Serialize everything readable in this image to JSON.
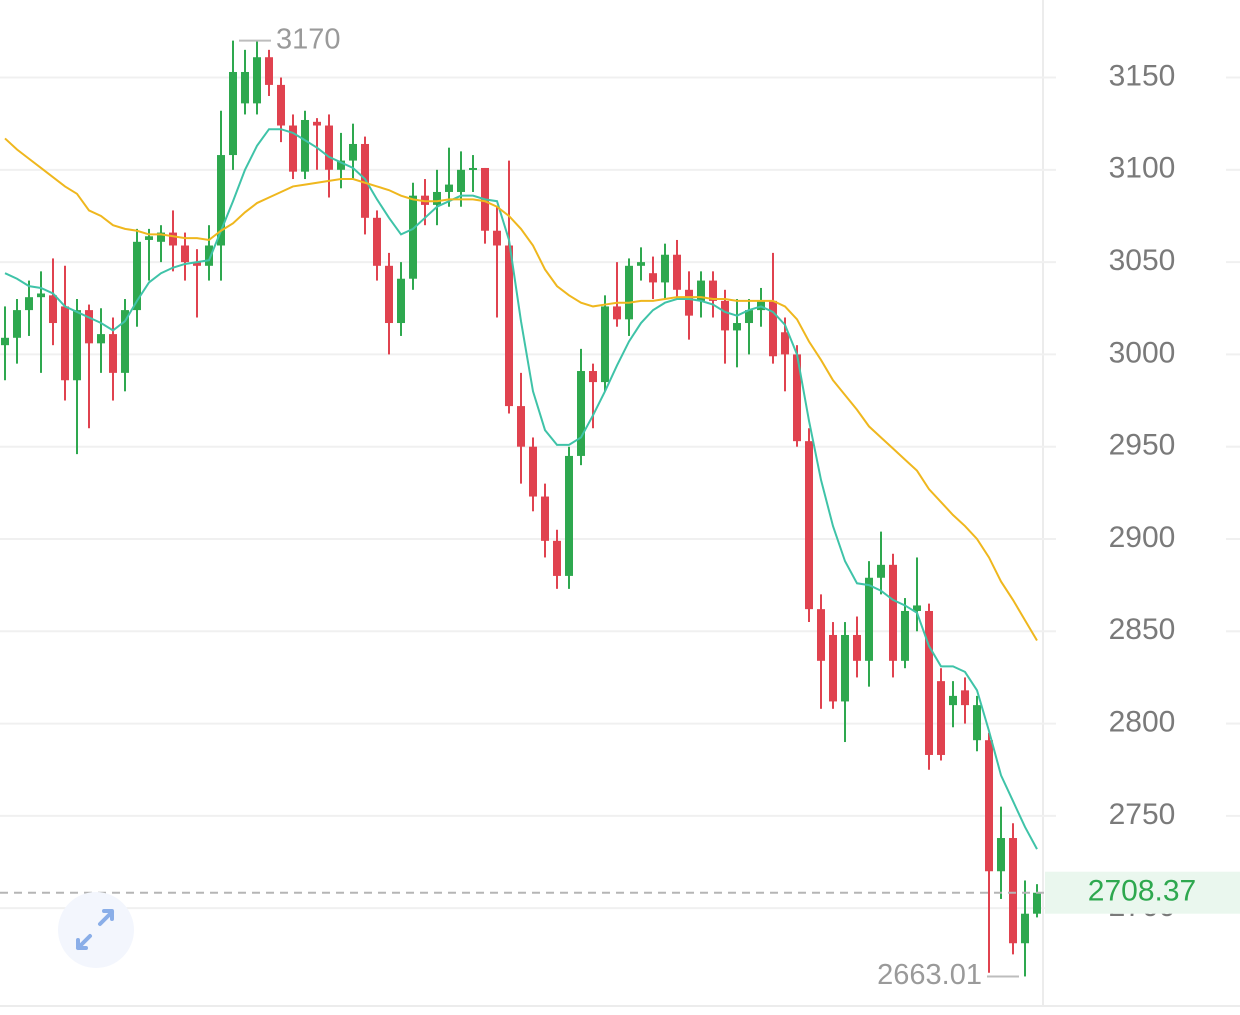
{
  "chart_data": {
    "type": "candlestick",
    "up_color": "#2ea84f",
    "down_color": "#e0424f",
    "ylim": [
      2647,
      3192
    ],
    "yticks": [
      2700,
      2750,
      2800,
      2850,
      2900,
      2950,
      3000,
      3050,
      3100,
      3150
    ],
    "grid": true,
    "open": [
      3005,
      3009,
      3024,
      3031,
      3032,
      3026,
      2986,
      3024,
      3006,
      3011,
      2990,
      3024,
      3062,
      3061,
      3066,
      3059,
      3050,
      3048,
      3059,
      3108,
      3136,
      3136,
      3161,
      3146,
      3124,
      3099,
      3126,
      3124,
      3100,
      3105,
      3114,
      3074,
      3048,
      3017,
      3041,
      3086,
      3081,
      3088,
      3088,
      3100,
      3101,
      3067,
      3059,
      2972,
      2950,
      2923,
      2899,
      2880,
      2945,
      2991,
      2985,
      3026,
      3019,
      3048,
      3044,
      3039,
      3054,
      3035,
      3029,
      3040,
      3029,
      3013,
      3017,
      3024,
      3029,
      3012,
      3000,
      2953,
      2862,
      2848,
      2812,
      2848,
      2834,
      2879,
      2886,
      2834,
      2861,
      2861,
      2823,
      2810,
      2818,
      2791,
      2791,
      2720,
      2738,
      2681,
      2697
    ],
    "high": [
      3026,
      3030,
      3040,
      3045,
      3052,
      3048,
      3030,
      3027,
      3025,
      3020,
      3030,
      3068,
      3068,
      3070,
      3078,
      3066,
      3057,
      3070,
      3132,
      3170,
      3165,
      3169.95,
      3165,
      3150,
      3130,
      3132,
      3128,
      3130,
      3120,
      3125,
      3118,
      3078,
      3055,
      3050,
      3093,
      3095,
      3100,
      3112,
      3110,
      3108,
      3101,
      3080,
      3105,
      2990,
      2955,
      2930,
      2905,
      2950,
      3003,
      2995,
      3032,
      3050,
      3052,
      3058,
      3053,
      3060,
      3062,
      3045,
      3045,
      3045,
      3035,
      3030,
      3030,
      3036,
      3055,
      3020,
      3005,
      2960,
      2870,
      2855,
      2855,
      2858,
      2888,
      2904,
      2892,
      2868,
      2890,
      2865,
      2830,
      2823,
      2825,
      2815,
      2795,
      2755,
      2746,
      2715,
      2713
    ],
    "low": [
      2986,
      2995,
      3010,
      2990,
      3005,
      2975,
      2946,
      2960,
      2990,
      2975,
      2980,
      3015,
      3040,
      3050,
      3045,
      3040,
      3020,
      3040,
      3040,
      3100,
      3130,
      3130,
      3140,
      3115,
      3095,
      3095,
      3100,
      3085,
      3090,
      3095,
      3065,
      3040,
      3000,
      3010,
      3035,
      3070,
      3070,
      3080,
      3080,
      3088,
      3060,
      3020,
      2968,
      2930,
      2915,
      2890,
      2873,
      2873,
      2940,
      2960,
      2980,
      3015,
      3010,
      3040,
      3030,
      3030,
      3030,
      3008,
      3020,
      3020,
      2995,
      2993,
      3000,
      3015,
      2995,
      2980,
      2950,
      2855,
      2808,
      2808,
      2790,
      2825,
      2820,
      2870,
      2825,
      2830,
      2850,
      2775,
      2780,
      2798,
      2800,
      2785,
      2665,
      2705,
      2675,
      2663.01,
      2695
    ],
    "close": [
      3009,
      3024,
      3031,
      3033,
      3017,
      2986,
      3024,
      3006,
      3011,
      2990,
      3024,
      3061,
      3064,
      3066,
      3059,
      3050,
      3048,
      3059,
      3108,
      3153,
      3153,
      3161,
      3146,
      3124,
      3099,
      3127,
      3124,
      3100,
      3105,
      3114,
      3074,
      3048,
      3017,
      3041,
      3086,
      3081,
      3088,
      3092,
      3100,
      3101,
      3067,
      3059,
      2972,
      2950,
      2923,
      2899,
      2880,
      2945,
      2991,
      2985,
      3026,
      3019,
      3048,
      3050,
      3039,
      3054,
      3035,
      3021,
      3040,
      3029,
      3013,
      3017,
      3024,
      3029,
      2999,
      3000,
      2953,
      2862,
      2834,
      2812,
      2848,
      2834,
      2879,
      2886,
      2834,
      2861,
      2864,
      2783,
      2783,
      2815,
      2810,
      2810,
      2720,
      2738,
      2681,
      2697,
      2708.37
    ],
    "series": [
      {
        "color": "#3fc3a8",
        "values": [
          3044,
          3041,
          3037,
          3036,
          3033,
          3026,
          3023,
          3020,
          3017,
          3013,
          3018,
          3029,
          3039,
          3044,
          3047,
          3049,
          3050,
          3051,
          3067,
          3083,
          3100,
          3113,
          3122,
          3122,
          3120,
          3116,
          3112,
          3107,
          3104,
          3101,
          3095,
          3084,
          3074,
          3065,
          3068,
          3074,
          3080,
          3083,
          3086,
          3086,
          3084,
          3083,
          3062,
          3018,
          2980,
          2959,
          2951,
          2951,
          2955,
          2967,
          2980,
          2994,
          3007,
          3017,
          3024,
          3028,
          3030,
          3030,
          3029,
          3027,
          3023,
          3021,
          3024,
          3026,
          3023,
          3016,
          3000,
          2964,
          2932,
          2907,
          2888,
          2876,
          2875,
          2872,
          2867,
          2864,
          2860,
          2842,
          2831,
          2831,
          2828,
          2818,
          2796,
          2772,
          2758,
          2744,
          2732
        ]
      },
      {
        "color": "#efb71e",
        "values": [
          3117,
          3111,
          3106,
          3101,
          3096,
          3091,
          3087,
          3078,
          3075,
          3070,
          3068,
          3067,
          3065,
          3065,
          3064,
          3063,
          3063,
          3062,
          3067,
          3071,
          3077,
          3082,
          3085,
          3088,
          3091,
          3092,
          3093,
          3094,
          3095,
          3095,
          3093,
          3091,
          3089,
          3086,
          3084,
          3083,
          3083,
          3084,
          3084,
          3084,
          3083,
          3080,
          3075,
          3068,
          3059,
          3046,
          3037,
          3032,
          3028,
          3026,
          3027,
          3028,
          3028,
          3029,
          3029,
          3030,
          3031,
          3031,
          3031,
          3030,
          3030,
          3029,
          3029,
          3029,
          3029,
          3026,
          3019,
          3007,
          2997,
          2986,
          2978,
          2970,
          2961,
          2955,
          2949,
          2943,
          2937,
          2927,
          2920,
          2913,
          2907,
          2900,
          2890,
          2877,
          2867,
          2856,
          2845
        ]
      }
    ]
  }
}
